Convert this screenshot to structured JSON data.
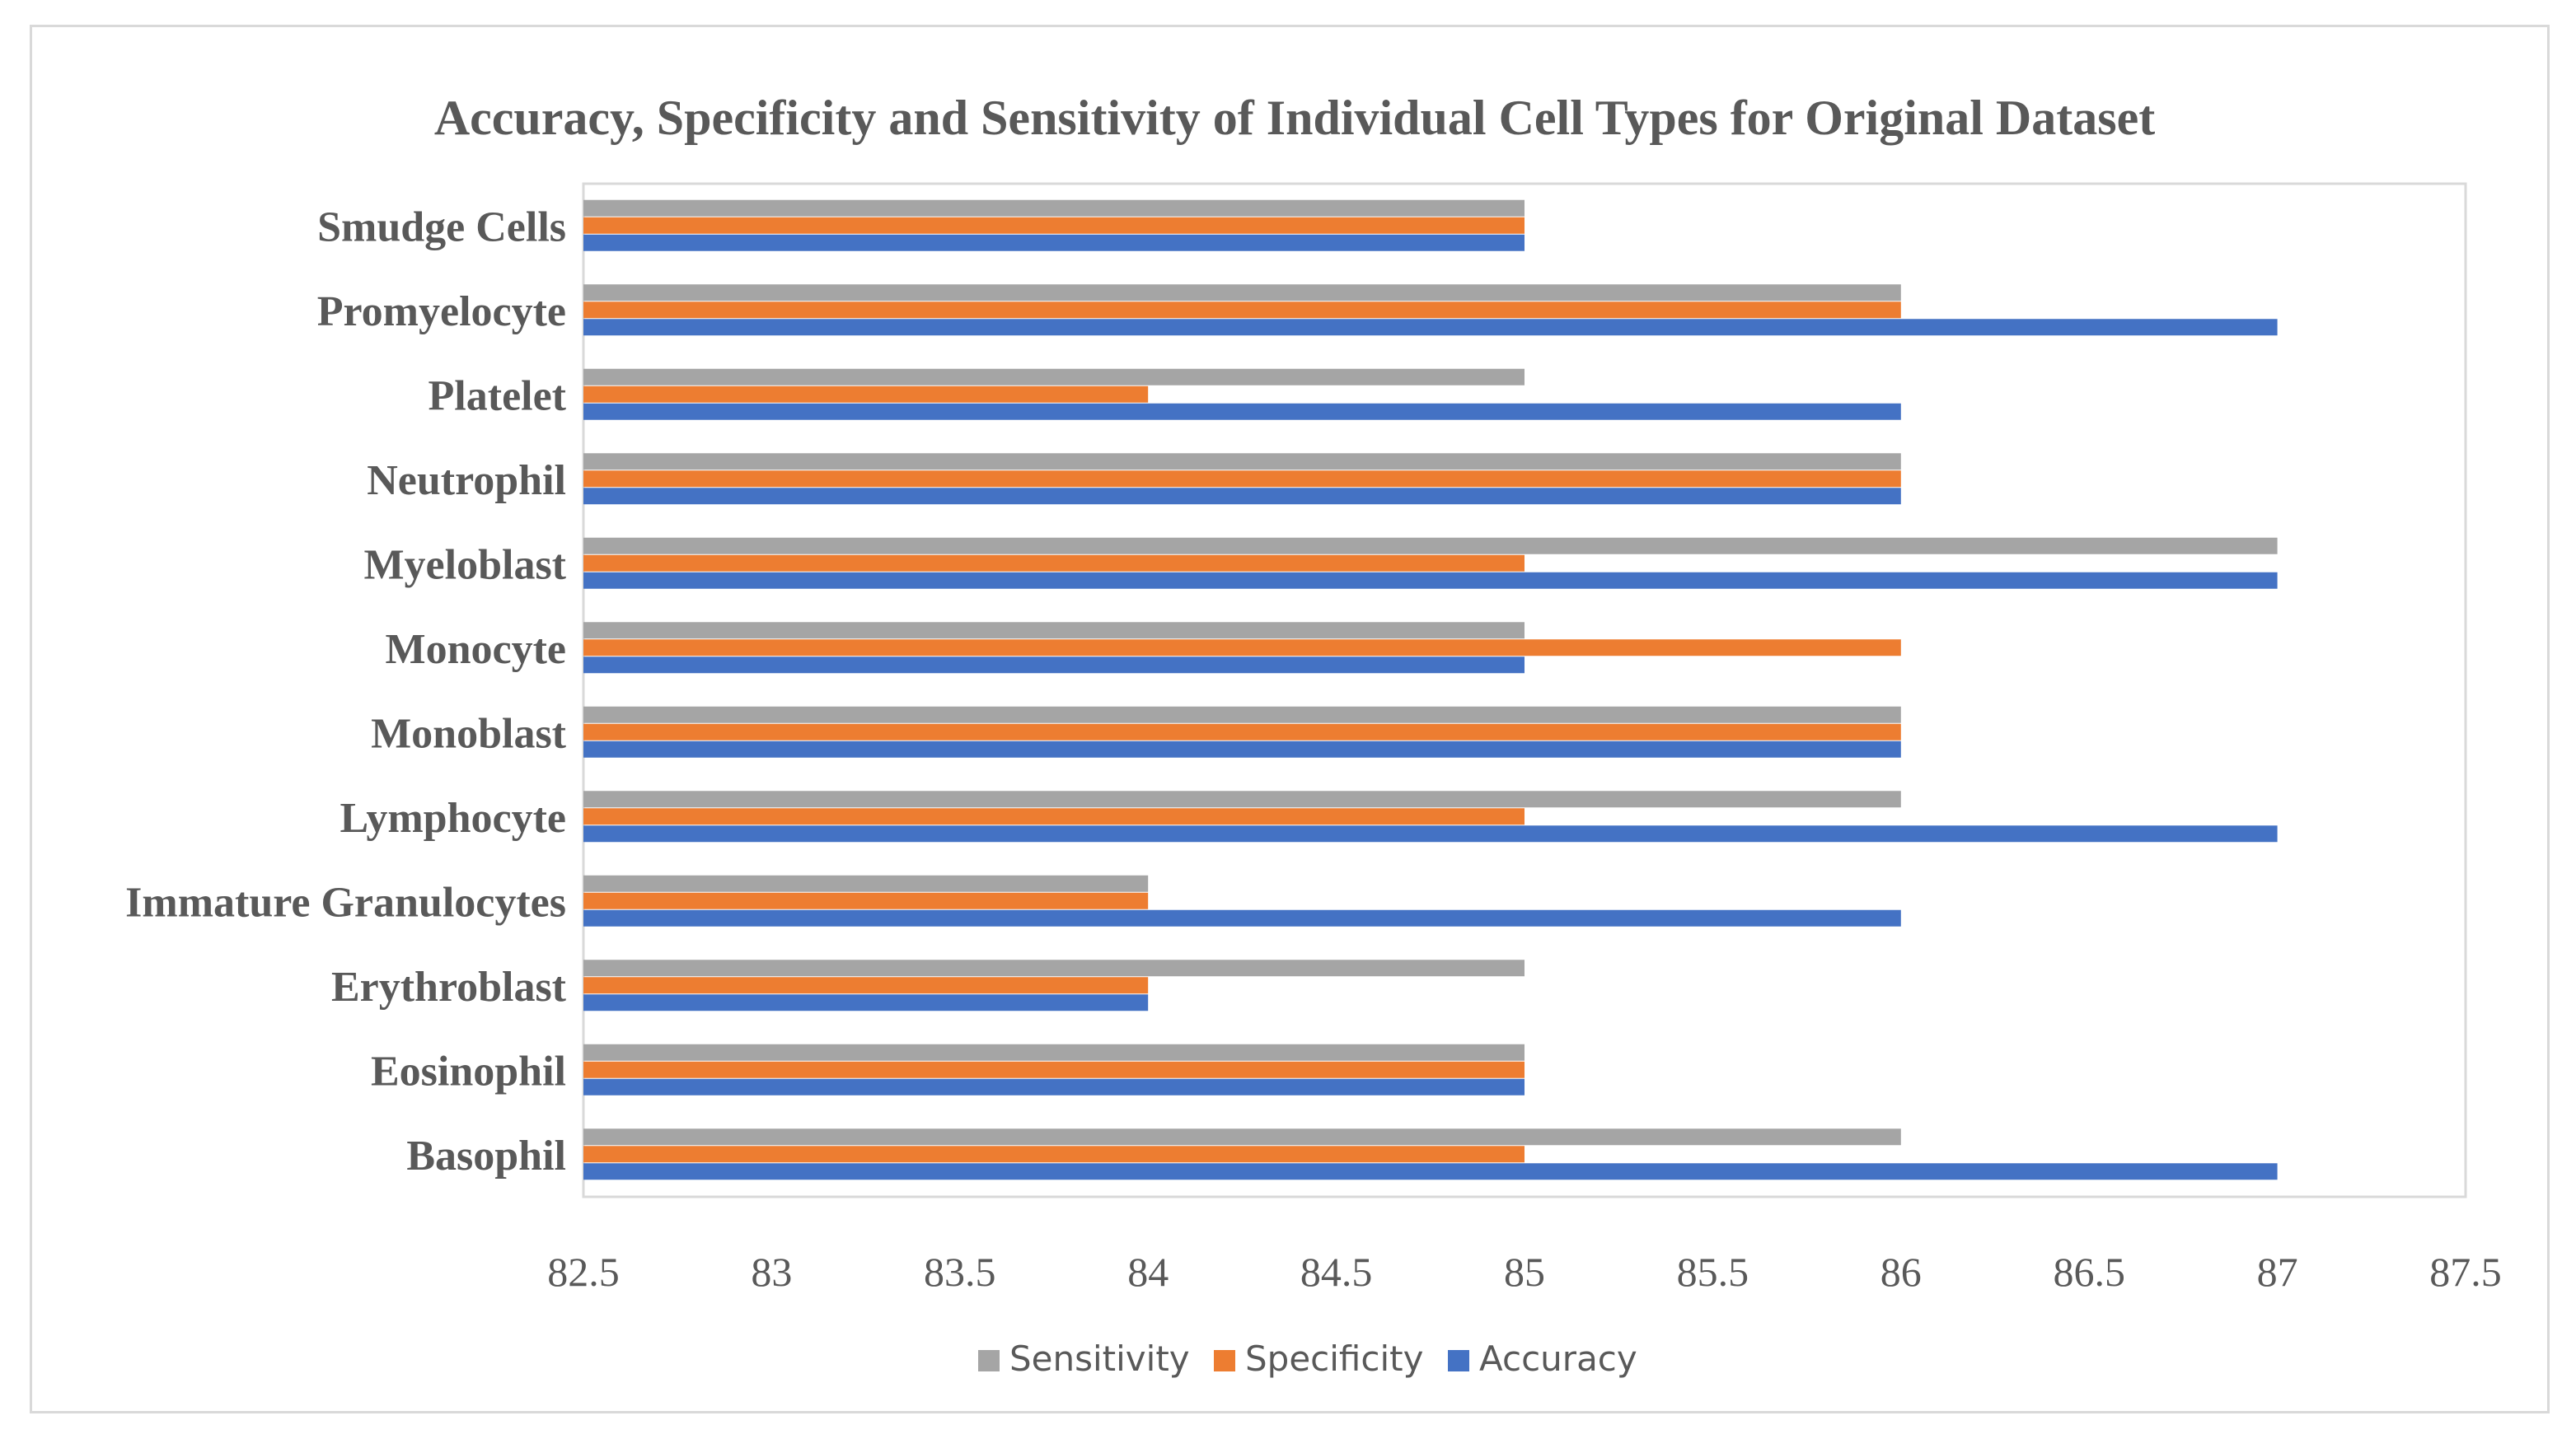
{
  "chart_data": {
    "type": "bar",
    "orientation": "horizontal",
    "title": "Accuracy, Specificity  and Sensitivity  of Individual  Cell  Types for Original  Dataset",
    "categories": [
      "Basophil",
      "Eosinophil",
      "Erythroblast",
      "Immature Granulocytes",
      "Lymphocyte",
      "Monoblast",
      "Monocyte",
      "Myeloblast",
      "Neutrophil",
      "Platelet",
      "Promyelocyte",
      "Smudge Cells"
    ],
    "series": [
      {
        "name": "Accuracy",
        "color": "#4472c4",
        "values": [
          87,
          85,
          84,
          86,
          87,
          86,
          85,
          87,
          86,
          86,
          87,
          85
        ]
      },
      {
        "name": "Specificity",
        "color": "#ed7d31",
        "values": [
          85,
          85,
          84,
          84,
          85,
          86,
          86,
          85,
          86,
          84,
          86,
          85
        ]
      },
      {
        "name": "Sensitivity",
        "color": "#a5a5a5",
        "values": [
          86,
          85,
          85,
          84,
          86,
          86,
          85,
          87,
          86,
          85,
          86,
          85
        ]
      }
    ],
    "xlim": [
      82.5,
      87.5
    ],
    "xticks": [
      "82.5",
      "83",
      "83.5",
      "84",
      "84.5",
      "85",
      "85.5",
      "86",
      "86.5",
      "87",
      "87.5"
    ],
    "legend": [
      "Sensitivity",
      "Specificity",
      "Accuracy"
    ],
    "legend_position": "bottom",
    "grid": false,
    "xlabel": "",
    "ylabel": ""
  }
}
